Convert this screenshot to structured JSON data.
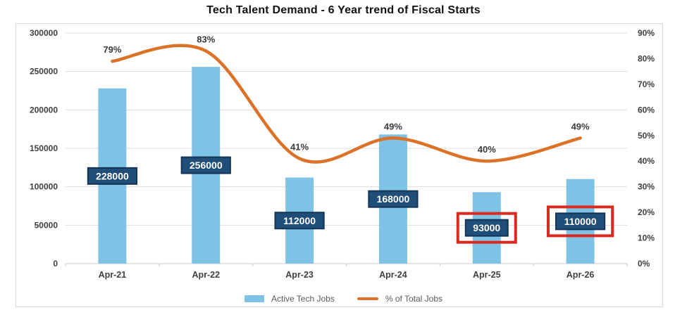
{
  "title": "Tech Talent Demand - 6 Year trend of Fiscal Starts",
  "chart_data": {
    "type": "bar+line combo",
    "title": "Tech Talent Demand - 6 Year trend of Fiscal Starts",
    "categories": [
      "Apr-21",
      "Apr-22",
      "Apr-23",
      "Apr-24",
      "Apr-25",
      "Apr-26"
    ],
    "series": [
      {
        "name": "Active Tech Jobs",
        "type": "bar",
        "axis": "left",
        "values": [
          228000,
          256000,
          112000,
          168000,
          93000,
          110000
        ],
        "labels": [
          "228000",
          "256000",
          "112000",
          "168000",
          "93000",
          "110000"
        ],
        "highlighted": [
          false,
          false,
          false,
          false,
          true,
          true
        ]
      },
      {
        "name": "% of Total Jobs",
        "type": "line",
        "axis": "right",
        "values": [
          79,
          83,
          41,
          49,
          40,
          49
        ],
        "labels": [
          "79%",
          "83%",
          "41%",
          "49%",
          "40%",
          "49%"
        ]
      }
    ],
    "left_axis": {
      "min": 0,
      "max": 300000,
      "step": 50000,
      "ticks": [
        "0",
        "50000",
        "100000",
        "150000",
        "200000",
        "250000",
        "300000"
      ]
    },
    "right_axis": {
      "min": 0,
      "max": 90,
      "step": 10,
      "ticks": [
        "0%",
        "10%",
        "20%",
        "30%",
        "40%",
        "50%",
        "60%",
        "70%",
        "80%",
        "90%"
      ]
    },
    "grid": true,
    "legend_position": "bottom-center"
  },
  "colors": {
    "bar": "#7ec3e6",
    "bar_label_bg": "#1f4e79",
    "bar_label_border": "#143457",
    "bar_label_text": "#ffffff",
    "line": "#db7227",
    "highlight_box": "#d92a20",
    "gridline": "#dcdcdc",
    "axis_line": "#c9c9c9",
    "axis_text": "#3f3f3f",
    "point_label_text": "#3b3b3b",
    "legend_text": "#595959",
    "panel_border": "#d9d9d9",
    "title": "#111111"
  }
}
